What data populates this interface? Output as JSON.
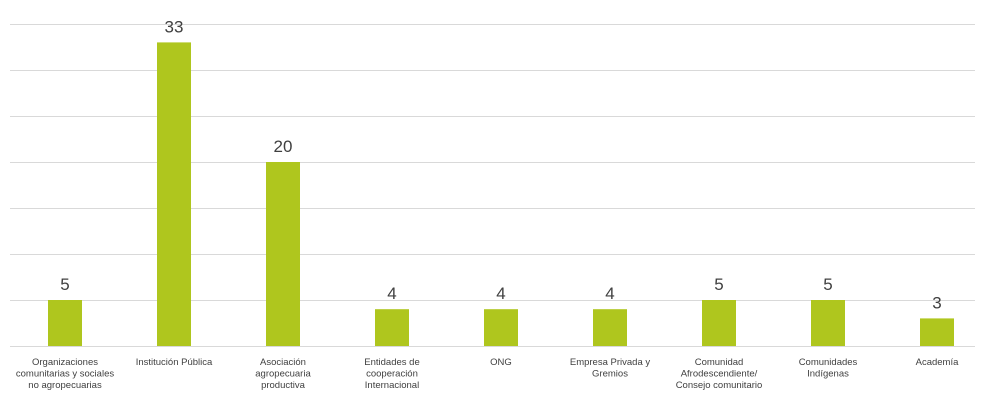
{
  "chart_data": {
    "type": "bar",
    "categories": [
      [
        "Organizaciones",
        "comunitarias y sociales",
        "no agropecuarias"
      ],
      [
        "Institución Pública"
      ],
      [
        "Asociación",
        "agropecuaria",
        "productiva"
      ],
      [
        "Entidades de",
        "cooperación",
        "Internacional"
      ],
      [
        "ONG"
      ],
      [
        "Empresa Privada y",
        "Gremios"
      ],
      [
        "Comunidad",
        "Afrodescendiente/",
        "Consejo comunitario"
      ],
      [
        "Comunidades",
        "Indígenas"
      ],
      [
        "Academía"
      ]
    ],
    "values": [
      5,
      33,
      20,
      4,
      4,
      4,
      5,
      5,
      3
    ],
    "ylim": [
      0,
      35
    ],
    "gridlines": [
      0,
      5,
      10,
      15,
      20,
      25,
      30,
      35
    ],
    "title": "",
    "xlabel": "",
    "ylabel": "",
    "bar_color": "#afc61e",
    "grid": true,
    "legend": "none"
  }
}
